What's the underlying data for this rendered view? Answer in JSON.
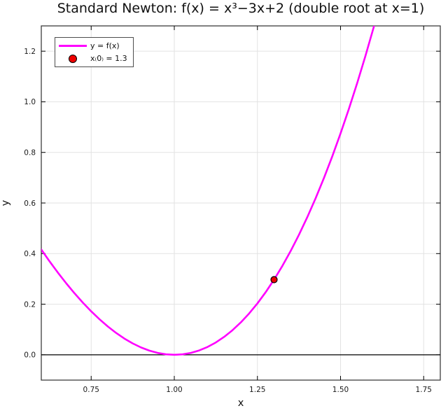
{
  "chart_data": {
    "type": "line",
    "title": "Standard Newton: f(x) = x³−3x+2 (double root at x=1)",
    "xlabel": "x",
    "ylabel": "y",
    "function": "f(x) = x³ − 3x + 2",
    "xlim": [
      0.6,
      1.8
    ],
    "ylim": [
      -0.1,
      1.3
    ],
    "grid": true,
    "legend_position": "top-left",
    "xticks": {
      "values": [
        0.75,
        1.0,
        1.25,
        1.5,
        1.75
      ],
      "labels": [
        "0.75",
        "1.00",
        "1.25",
        "1.50",
        "1.75"
      ]
    },
    "yticks": {
      "values": [
        0.0,
        0.2,
        0.4,
        0.6,
        0.8,
        1.0,
        1.2
      ],
      "labels": [
        "0.0",
        "0.2",
        "0.4",
        "0.6",
        "0.8",
        "1.0",
        "1.2"
      ]
    },
    "series": [
      {
        "name": "y = f(x)",
        "color": "#ff00ff",
        "width": 2.6,
        "x": [
          0.6,
          0.625,
          0.65,
          0.675,
          0.7,
          0.725,
          0.75,
          0.775,
          0.8,
          0.825,
          0.85,
          0.875,
          0.9,
          0.925,
          0.95,
          0.975,
          1.0,
          1.025,
          1.05,
          1.075,
          1.1,
          1.125,
          1.15,
          1.175,
          1.2,
          1.225,
          1.25,
          1.275,
          1.3,
          1.325,
          1.35,
          1.375,
          1.4,
          1.425,
          1.45,
          1.475,
          1.5,
          1.525,
          1.55,
          1.575,
          1.6,
          1.625,
          1.65
        ],
        "y": [
          0.416,
          0.3691,
          0.3246,
          0.2825,
          0.243,
          0.2061,
          0.1719,
          0.1405,
          0.112,
          0.0865,
          0.0641,
          0.0449,
          0.029,
          0.0165,
          0.0074,
          0.0019,
          0.0,
          0.0019,
          0.0076,
          0.0173,
          0.031,
          0.0488,
          0.0709,
          0.0972,
          0.128,
          0.1633,
          0.2031,
          0.2477,
          0.297,
          0.3512,
          0.4104,
          0.4746,
          0.544,
          0.6186,
          0.6986,
          0.784,
          0.875,
          0.9716,
          1.0739,
          1.182,
          1.296,
          1.416,
          1.5421
        ]
      }
    ],
    "scatter": [
      {
        "name": "x₍0₎ = 1.3",
        "x": 1.3,
        "y": 0.297,
        "radius": 4.5,
        "color": "#ee0000",
        "edge": "#000000"
      }
    ],
    "hlines": [
      {
        "y": 0.0,
        "color": "#000000"
      }
    ],
    "colors": {
      "grid": "#e2e2e2",
      "frame": "#3d3d3d",
      "tick": "#000000",
      "text": "#1a1a1a",
      "curve": "#ff00ff",
      "marker": "#ee0000",
      "background": "#ffffff"
    }
  }
}
